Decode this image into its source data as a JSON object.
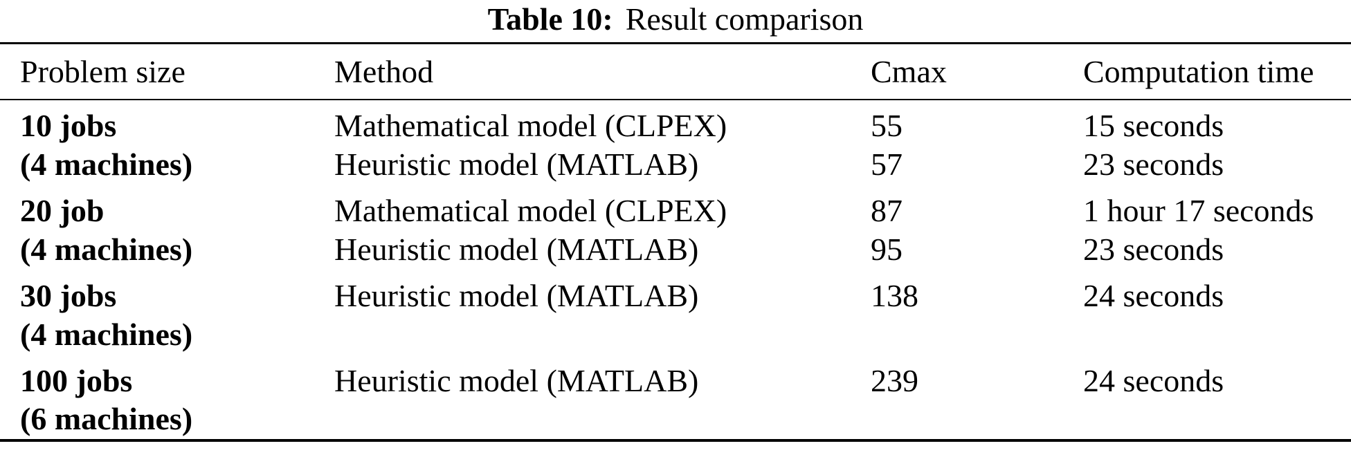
{
  "title": {
    "label": "Table 10:",
    "text": "Result comparison"
  },
  "table": {
    "columns": {
      "problem_size": "Problem size",
      "method": "Method",
      "cmax": "Cmax",
      "time": "Computation time"
    },
    "groups": [
      {
        "size": "10 jobs",
        "machines": "(4 machines)",
        "rows": [
          {
            "method": "Mathematical model (CLPEX)",
            "cmax": "55",
            "time": "15 seconds"
          },
          {
            "method": "Heuristic model (MATLAB)",
            "cmax": "57",
            "time": "23 seconds"
          }
        ]
      },
      {
        "size": "20 job",
        "machines": "(4 machines)",
        "rows": [
          {
            "method": "Mathematical model (CLPEX)",
            "cmax": "87",
            "time": "1 hour 17 seconds"
          },
          {
            "method": "Heuristic model (MATLAB)",
            "cmax": "95",
            "time": "23 seconds"
          }
        ]
      },
      {
        "size": "30 jobs",
        "machines": "(4 machines)",
        "rows": [
          {
            "method": "Heuristic model (MATLAB)",
            "cmax": "138",
            "time": "24 seconds"
          }
        ]
      },
      {
        "size": "100 jobs",
        "machines": "(6 machines)",
        "rows": [
          {
            "method": "Heuristic model (MATLAB)",
            "cmax": "239",
            "time": "24 seconds"
          }
        ]
      }
    ]
  },
  "chart_data": {
    "type": "table",
    "title": "Table 10: Result comparison",
    "columns": [
      "Problem size",
      "Method",
      "Cmax",
      "Computation time"
    ],
    "rows": [
      [
        "10 jobs (4 machines)",
        "Mathematical model (CLPEX)",
        55,
        "15 seconds"
      ],
      [
        "10 jobs (4 machines)",
        "Heuristic model (MATLAB)",
        57,
        "23 seconds"
      ],
      [
        "20 job (4 machines)",
        "Mathematical model (CLPEX)",
        87,
        "1 hour 17 seconds"
      ],
      [
        "20 job (4 machines)",
        "Heuristic model (MATLAB)",
        95,
        "23 seconds"
      ],
      [
        "30 jobs (4 machines)",
        "Heuristic model (MATLAB)",
        138,
        "24 seconds"
      ],
      [
        "100 jobs (6 machines)",
        "Heuristic model (MATLAB)",
        239,
        "24 seconds"
      ]
    ]
  }
}
